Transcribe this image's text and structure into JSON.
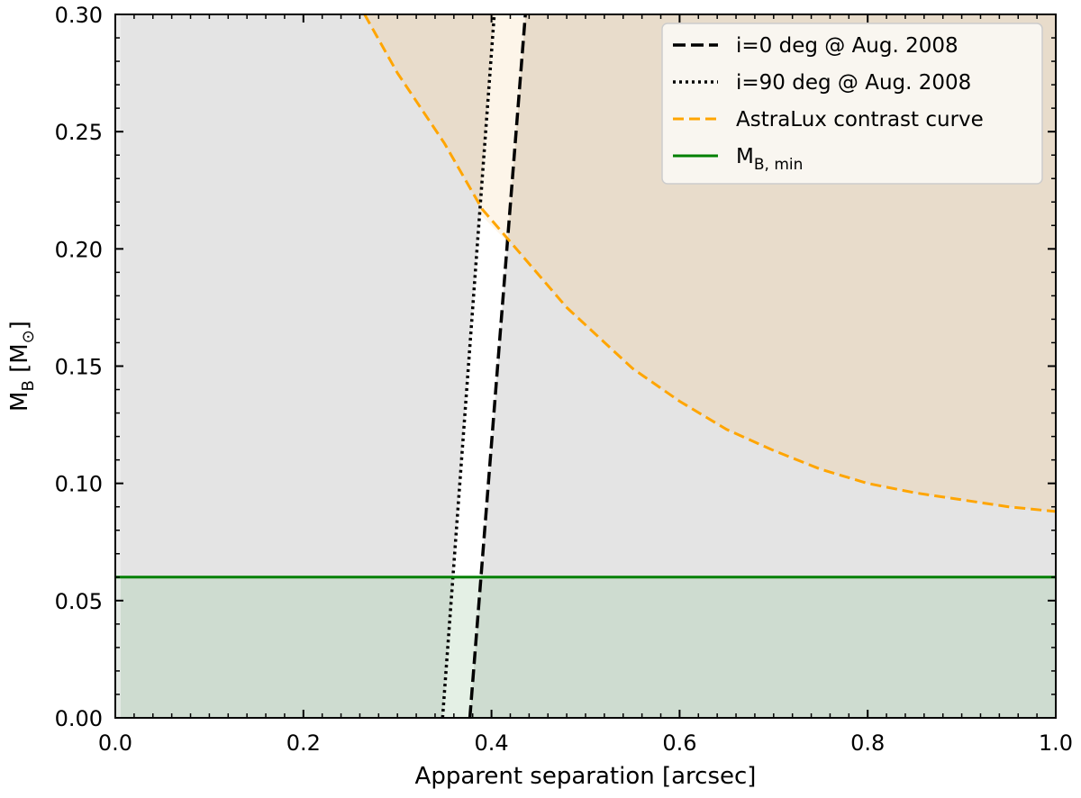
{
  "chart_data": {
    "type": "line",
    "xlabel": "Apparent separation [arcsec]",
    "ylabel_main": "M",
    "ylabel_sub": "B",
    "ylabel_unit_open": " [M",
    "ylabel_unit_sub": "⊙",
    "ylabel_unit_close": "]",
    "xlim": [
      0.0,
      1.0
    ],
    "ylim": [
      0.0,
      0.3
    ],
    "xticks": [
      0.0,
      0.2,
      0.4,
      0.6,
      0.8,
      1.0
    ],
    "xtick_labels": [
      "0.0",
      "0.2",
      "0.4",
      "0.6",
      "0.8",
      "1.0"
    ],
    "yticks": [
      0.0,
      0.05,
      0.1,
      0.15,
      0.2,
      0.25,
      0.3
    ],
    "ytick_labels": [
      "0.00",
      "0.05",
      "0.10",
      "0.15",
      "0.20",
      "0.25",
      "0.30"
    ],
    "legend_placement": "top-right",
    "grid": false,
    "series": [
      {
        "name": "i=0 deg @ Aug. 2008",
        "style": "dashed",
        "color": "#000000",
        "points": [
          [
            0.377,
            0.0
          ],
          [
            0.436,
            0.3
          ]
        ]
      },
      {
        "name": "i=90 deg @ Aug. 2008",
        "style": "dotted",
        "color": "#000000",
        "points": [
          [
            0.348,
            0.0
          ],
          [
            0.403,
            0.3
          ]
        ]
      },
      {
        "name": "AstraLux contrast curve",
        "style": "dashed",
        "color": "#FFA500",
        "points": [
          [
            0.265,
            0.3
          ],
          [
            0.3,
            0.275
          ],
          [
            0.35,
            0.245
          ],
          [
            0.39,
            0.217
          ],
          [
            0.42,
            0.203
          ],
          [
            0.48,
            0.175
          ],
          [
            0.55,
            0.149
          ],
          [
            0.6,
            0.135
          ],
          [
            0.65,
            0.123
          ],
          [
            0.7,
            0.114
          ],
          [
            0.75,
            0.106
          ],
          [
            0.8,
            0.1
          ],
          [
            0.85,
            0.096
          ],
          [
            0.9,
            0.093
          ],
          [
            0.95,
            0.09
          ],
          [
            1.0,
            0.088
          ]
        ]
      },
      {
        "name": "M",
        "name_sub": "B, min",
        "style": "solid",
        "color": "#008000",
        "points": [
          [
            0.0,
            0.06
          ],
          [
            1.0,
            0.06
          ]
        ]
      }
    ],
    "colors": {
      "excluded_gray": "#e4e4e4",
      "excluded_orange": "#e8dccb",
      "allowed_orange_light": "#fdf5e9",
      "green_fill": "#cedcd0",
      "green_band_light": "#e4f0e5",
      "background": "#ffffff"
    }
  }
}
